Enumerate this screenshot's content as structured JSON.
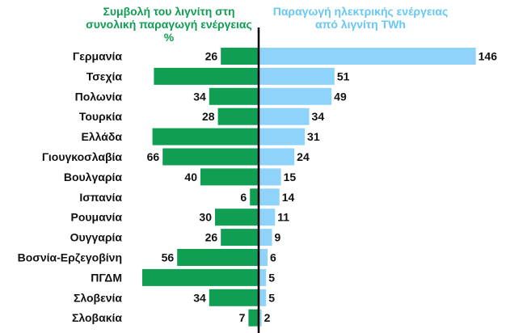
{
  "chart_data": {
    "type": "bar",
    "title_left": "Συμβολή του λιγνίτη στη συνολική παραγωγή ενέργειας %",
    "title_right": "Παραγωγή ηλεκτρικής ενέργειας από λιγνίτη  TWh",
    "categories": [
      "Γερμανία",
      "Τσεχία",
      "Πολωνία",
      "Τουρκία",
      "Ελλάδα",
      "Γιουγκοσλαβία",
      "Βουλγαρία",
      "Ισπανία",
      "Ρουμανία",
      "Ουγγαρία",
      "Βοσνία-Ερζεγοβίνη",
      "ΠΓΔΜ",
      "Σλοβενία",
      "Σλοβακία"
    ],
    "series": [
      {
        "values": [
          26,
          72,
          34,
          28,
          73,
          66,
          40,
          6,
          30,
          26,
          56,
          80,
          34,
          7
        ],
        "value_labels": [
          "26",
          "",
          "34",
          "28",
          "",
          "66",
          "40",
          "6",
          "30",
          "26",
          "56",
          "",
          "34",
          "7"
        ],
        "color": "#0f9e52",
        "side": "left"
      },
      {
        "values": [
          146,
          51,
          49,
          34,
          31,
          24,
          15,
          14,
          11,
          9,
          6,
          5,
          5,
          2
        ],
        "value_labels": [
          "146",
          "51",
          "49",
          "34",
          "31",
          "24",
          "15",
          "14",
          "11",
          "9",
          "6",
          "5",
          "5",
          "2"
        ],
        "color": "#8fd3fb",
        "side": "right"
      }
    ],
    "grid": false,
    "legend": "none"
  }
}
